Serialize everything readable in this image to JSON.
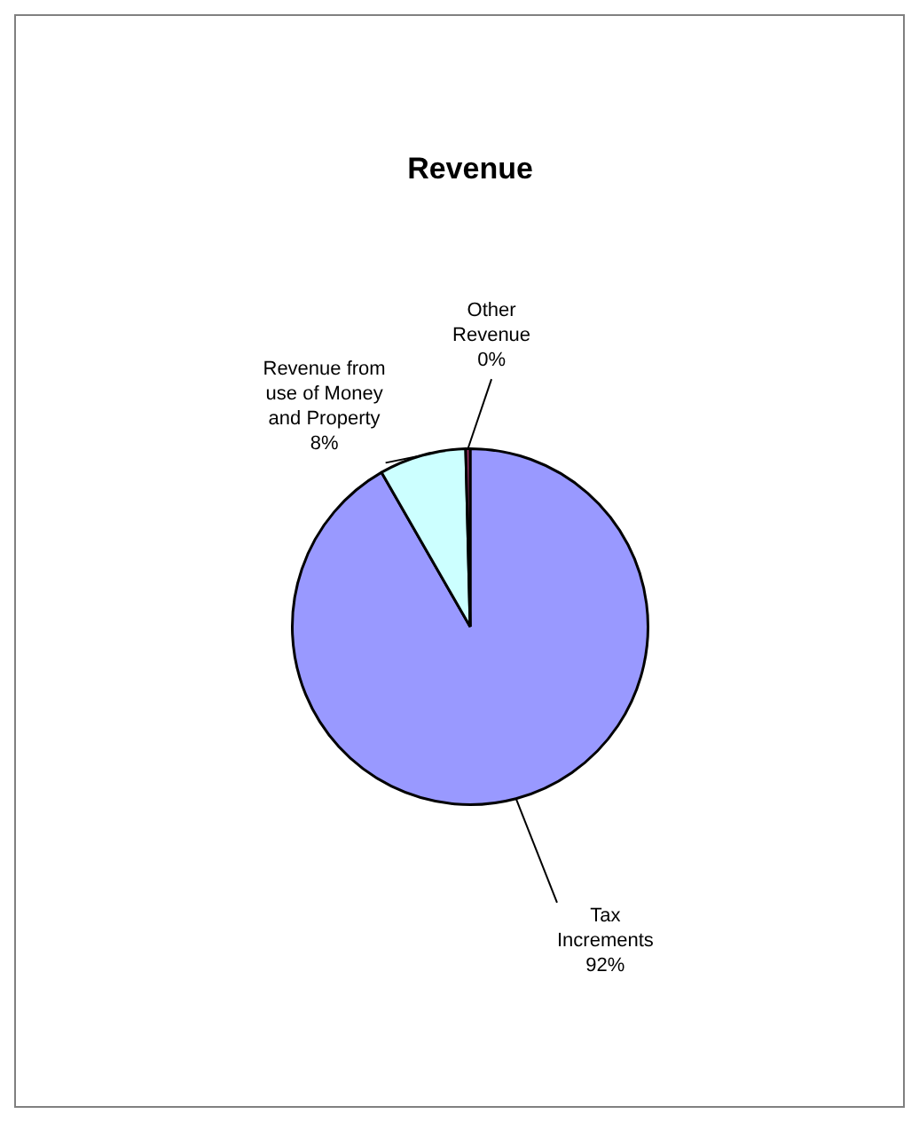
{
  "chart_data": {
    "type": "pie",
    "title": "Revenue",
    "categories": [
      "Tax Increments",
      "Revenue from use of Money and Property",
      "Other Revenue"
    ],
    "values": [
      91.7,
      7.9,
      0.4
    ],
    "value_labels": [
      "92%",
      "8%",
      "0%"
    ],
    "colors": [
      "#9999ff",
      "#ccffff",
      "#993366"
    ],
    "legend": false
  }
}
